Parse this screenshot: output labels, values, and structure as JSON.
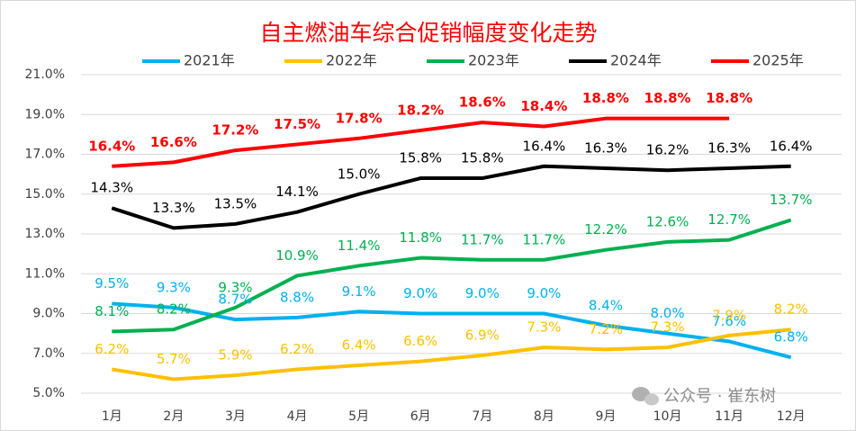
{
  "chart_data": {
    "type": "line",
    "title": "自主燃油车综合促销幅度变化走势",
    "categories": [
      "1月",
      "2月",
      "3月",
      "4月",
      "5月",
      "6月",
      "7月",
      "8月",
      "9月",
      "10月",
      "11月",
      "12月"
    ],
    "series": [
      {
        "name": "2021年",
        "color": "#00b0f0",
        "values": [
          9.5,
          9.3,
          8.7,
          8.8,
          9.1,
          9.0,
          9.0,
          9.0,
          8.4,
          8.0,
          7.6,
          6.8
        ],
        "value_labels": [
          "9.5%",
          "9.3%",
          "8.7%",
          "8.8%",
          "9.1%",
          "9.0%",
          "9.0%",
          "9.0%",
          "8.4%",
          "8.0%",
          "7.6%",
          "6.8%"
        ]
      },
      {
        "name": "2022年",
        "color": "#ffc000",
        "values": [
          6.2,
          5.7,
          5.9,
          6.2,
          6.4,
          6.6,
          6.9,
          7.3,
          7.2,
          7.3,
          7.9,
          8.2
        ],
        "value_labels": [
          "6.2%",
          "5.7%",
          "5.9%",
          "6.2%",
          "6.4%",
          "6.6%",
          "6.9%",
          "7.3%",
          "7.2%",
          "7.3%",
          "7.9%",
          "8.2%"
        ]
      },
      {
        "name": "2023年",
        "color": "#00b050",
        "values": [
          8.1,
          8.2,
          9.3,
          10.9,
          11.4,
          11.8,
          11.7,
          11.7,
          12.2,
          12.6,
          12.7,
          13.7
        ],
        "value_labels": [
          "8.1%",
          "8.2%",
          "9.3%",
          "10.9%",
          "11.4%",
          "11.8%",
          "11.7%",
          "11.7%",
          "12.2%",
          "12.6%",
          "12.7%",
          "13.7%"
        ]
      },
      {
        "name": "2024年",
        "color": "#000000",
        "values": [
          14.3,
          13.3,
          13.5,
          14.1,
          15.0,
          15.8,
          15.8,
          16.4,
          16.3,
          16.2,
          16.3,
          16.4
        ],
        "value_labels": [
          "14.3%",
          "13.3%",
          "13.5%",
          "14.1%",
          "15.0%",
          "15.8%",
          "15.8%",
          "16.4%",
          "16.3%",
          "16.2%",
          "16.3%",
          "16.4%"
        ]
      },
      {
        "name": "2025年",
        "color": "#ff0000",
        "values": [
          16.4,
          16.6,
          17.2,
          17.5,
          17.8,
          18.2,
          18.6,
          18.4,
          18.8,
          18.8,
          18.8,
          null
        ],
        "value_labels": [
          "16.4%",
          "16.6%",
          "17.2%",
          "17.5%",
          "17.8%",
          "18.2%",
          "18.6%",
          "18.4%",
          "18.8%",
          "18.8%",
          "18.8%",
          null
        ]
      }
    ],
    "ylim": [
      5,
      21
    ],
    "yticks": [
      {
        "value": 5,
        "label": "5.0%"
      },
      {
        "value": 7,
        "label": "7.0%"
      },
      {
        "value": 9,
        "label": "9.0%"
      },
      {
        "value": 11,
        "label": "11.0%"
      },
      {
        "value": 13,
        "label": "13.0%"
      },
      {
        "value": 15,
        "label": "15.0%"
      },
      {
        "value": 17,
        "label": "17.0%"
      },
      {
        "value": 19,
        "label": "19.0%"
      },
      {
        "value": 21,
        "label": "21.0%"
      }
    ],
    "grid": true,
    "legend": "top",
    "watermark": "公众号 · 崔东树"
  }
}
